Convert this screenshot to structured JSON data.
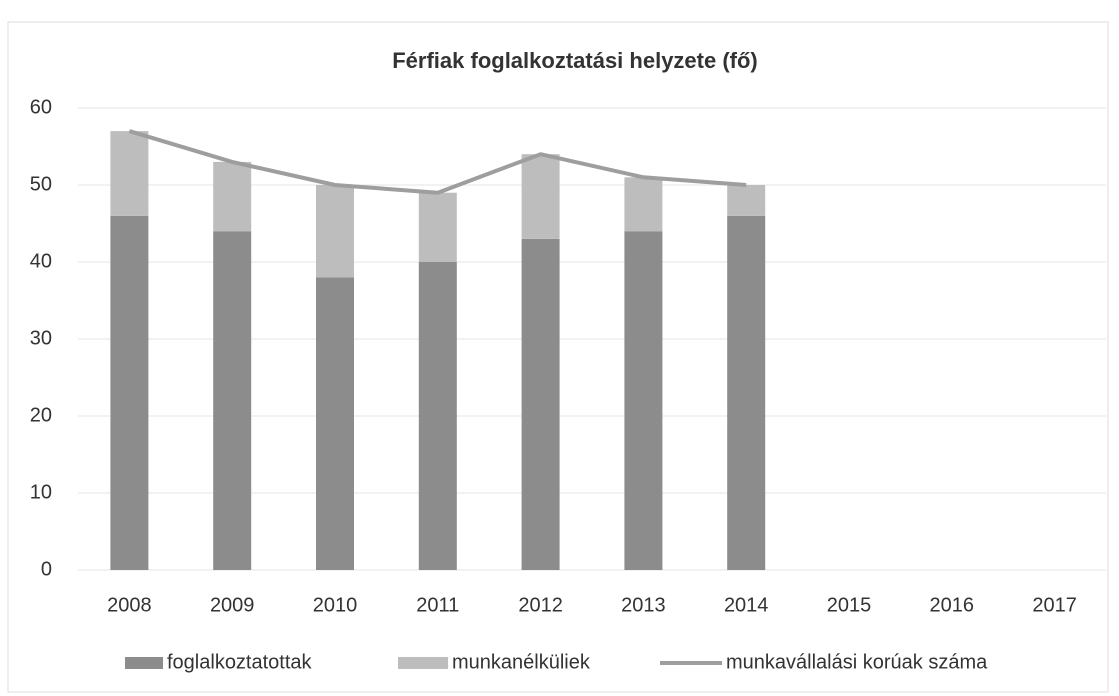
{
  "chart_data": {
    "type": "stacked-bar-line",
    "title": "Férfiak foglalkoztatási helyzete (fő)",
    "categories": [
      "2008",
      "2009",
      "2010",
      "2011",
      "2012",
      "2013",
      "2014",
      "2015",
      "2016",
      "2017"
    ],
    "series": [
      {
        "name": "foglalkoztatottak",
        "color": "#8c8c8c",
        "kind": "bar",
        "values": [
          46,
          44,
          38,
          40,
          43,
          44,
          46,
          null,
          null,
          null
        ]
      },
      {
        "name": "munkanélküliek",
        "color": "#bdbdbd",
        "kind": "bar",
        "values": [
          11,
          9,
          12,
          9,
          11,
          7,
          4,
          null,
          null,
          null
        ]
      },
      {
        "name": "munkavállalási korúak száma",
        "color": "#9e9e9e",
        "kind": "line",
        "values": [
          57,
          53,
          50,
          49,
          54,
          51,
          50,
          null,
          null,
          null
        ]
      }
    ],
    "ylim": [
      0,
      60
    ],
    "yticks": [
      0,
      10,
      20,
      30,
      40,
      50,
      60
    ],
    "grid": true,
    "legend": "bottom"
  }
}
